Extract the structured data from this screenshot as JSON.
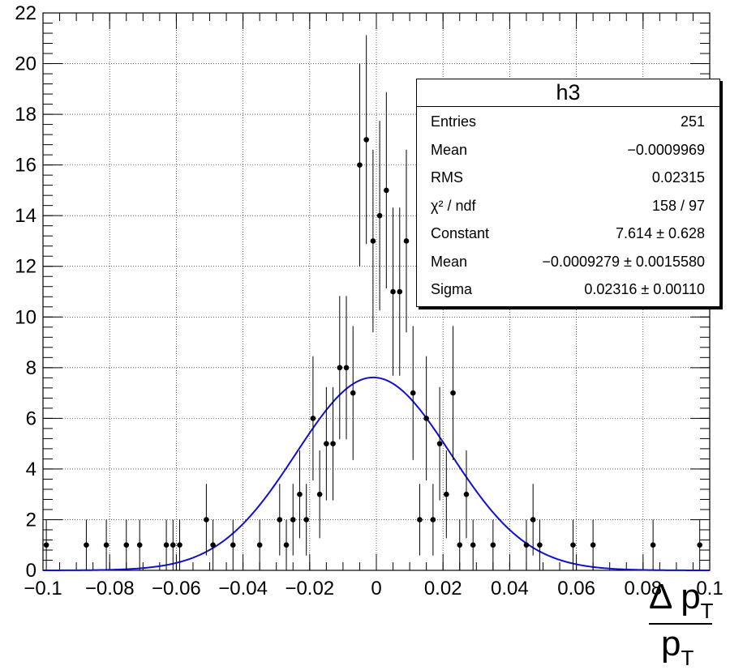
{
  "chart_data": {
    "type": "scatter",
    "title": "",
    "xlabel_parts": {
      "numerator": "Δ p",
      "numerator_sub": "T",
      "denominator": "p",
      "denominator_sub": "T"
    },
    "ylabel": "",
    "xlim": [
      -0.1,
      0.1
    ],
    "ylim": [
      0,
      22
    ],
    "grid": true,
    "x_tick_labels": [
      "−0.1",
      "−0.08",
      "−0.06",
      "−0.04",
      "−0.02",
      "0",
      "0.02",
      "0.04",
      "0.06",
      "0.08",
      "0.1"
    ],
    "x_tick_values": [
      -0.1,
      -0.08,
      -0.06,
      -0.04,
      -0.02,
      0,
      0.02,
      0.04,
      0.06,
      0.08,
      0.1
    ],
    "y_tick_labels": [
      "0",
      "2",
      "4",
      "6",
      "8",
      "10",
      "12",
      "14",
      "16",
      "18",
      "20",
      "22"
    ],
    "y_tick_values": [
      0,
      2,
      4,
      6,
      8,
      10,
      12,
      14,
      16,
      18,
      20,
      22
    ],
    "series": [
      {
        "type": "points_with_errors",
        "color": "#000000",
        "x": [
          -0.099,
          -0.087,
          -0.081,
          -0.075,
          -0.071,
          -0.063,
          -0.061,
          -0.059,
          -0.051,
          -0.049,
          -0.043,
          -0.035,
          -0.029,
          -0.027,
          -0.025,
          -0.023,
          -0.021,
          -0.019,
          -0.017,
          -0.015,
          -0.013,
          -0.011,
          -0.009,
          -0.007,
          -0.005,
          -0.003,
          -0.001,
          0.001,
          0.003,
          0.005,
          0.007,
          0.009,
          0.011,
          0.013,
          0.015,
          0.017,
          0.019,
          0.021,
          0.023,
          0.025,
          0.027,
          0.029,
          0.035,
          0.045,
          0.047,
          0.049,
          0.059,
          0.065,
          0.083,
          0.097
        ],
        "y": [
          1,
          1,
          1,
          1,
          1,
          1,
          1,
          1,
          2,
          1,
          1,
          1,
          2,
          1,
          2,
          3,
          2,
          6,
          3,
          5,
          5,
          8,
          8,
          7,
          16,
          17,
          13,
          14,
          15,
          11,
          11,
          13,
          7,
          2,
          6,
          2,
          5,
          3,
          7,
          1,
          3,
          1,
          1,
          1,
          2,
          1,
          1,
          1,
          1,
          1
        ]
      },
      {
        "type": "line",
        "name": "",
        "color": "#1010d0",
        "function": "gaussian",
        "constant": 7.614,
        "mean": -0.0009279,
        "sigma": 0.02316
      }
    ]
  },
  "stats_box": {
    "title": "h3",
    "rows": [
      {
        "key": "Entries",
        "value": "251"
      },
      {
        "key": "Mean",
        "value": "−0.0009969"
      },
      {
        "key": "RMS",
        "value": "0.02315"
      },
      {
        "key": "χ² / ndf",
        "value": "158 / 97"
      },
      {
        "key": "Constant",
        "value": "7.614 ± 0.628"
      },
      {
        "key": "Mean",
        "value": "−0.0009279 ± 0.0015580"
      },
      {
        "key": "Sigma",
        "value": "0.02316 ± 0.00110"
      }
    ]
  }
}
